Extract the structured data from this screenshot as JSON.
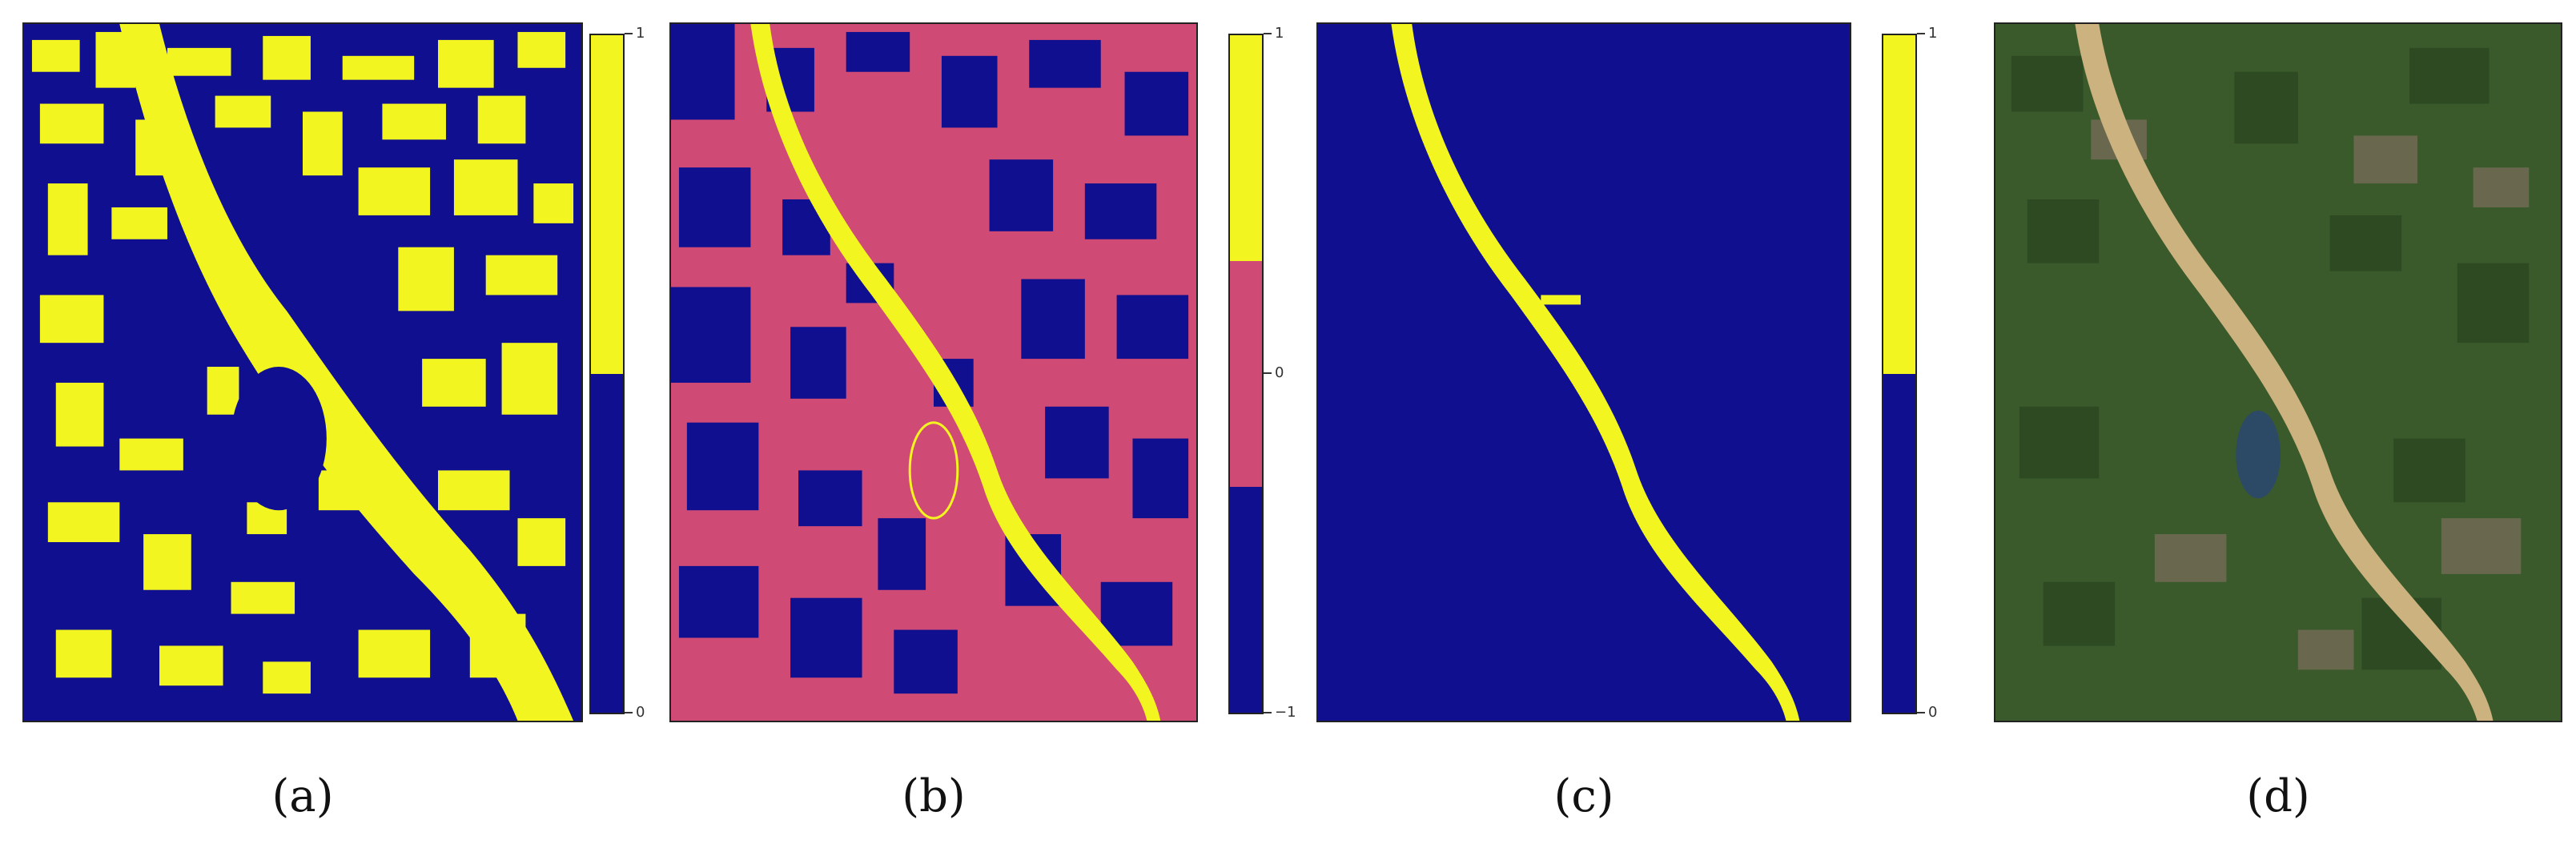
{
  "colors": {
    "navy": "#0f0f8f",
    "yellow": "#f2f51f",
    "pink": "#cf4a74",
    "terrain": "#3a5a2c",
    "river": "#cbb27e"
  },
  "panels": [
    {
      "caption": "(a)",
      "colorbar": {
        "segments": [
          {
            "color_key": "yellow",
            "value_from": 0.5,
            "value_to": 1
          },
          {
            "color_key": "navy",
            "value_from": 0,
            "value_to": 0.5
          }
        ],
        "tick_labels": [
          "1",
          "0"
        ]
      }
    },
    {
      "caption": "(b)",
      "colorbar": {
        "segments": [
          {
            "color_key": "yellow",
            "value_from": 0.333,
            "value_to": 1
          },
          {
            "color_key": "pink",
            "value_from": -0.333,
            "value_to": 0.333
          },
          {
            "color_key": "navy",
            "value_from": -1,
            "value_to": -0.333
          }
        ],
        "tick_labels": [
          "1",
          "0",
          "−1"
        ]
      }
    },
    {
      "caption": "(c)",
      "colorbar": {
        "segments": [
          {
            "color_key": "yellow",
            "value_from": 0.5,
            "value_to": 1
          },
          {
            "color_key": "navy",
            "value_from": 0,
            "value_to": 0.5
          }
        ],
        "tick_labels": [
          "1",
          "0"
        ]
      }
    },
    {
      "caption": "(d)"
    }
  ]
}
